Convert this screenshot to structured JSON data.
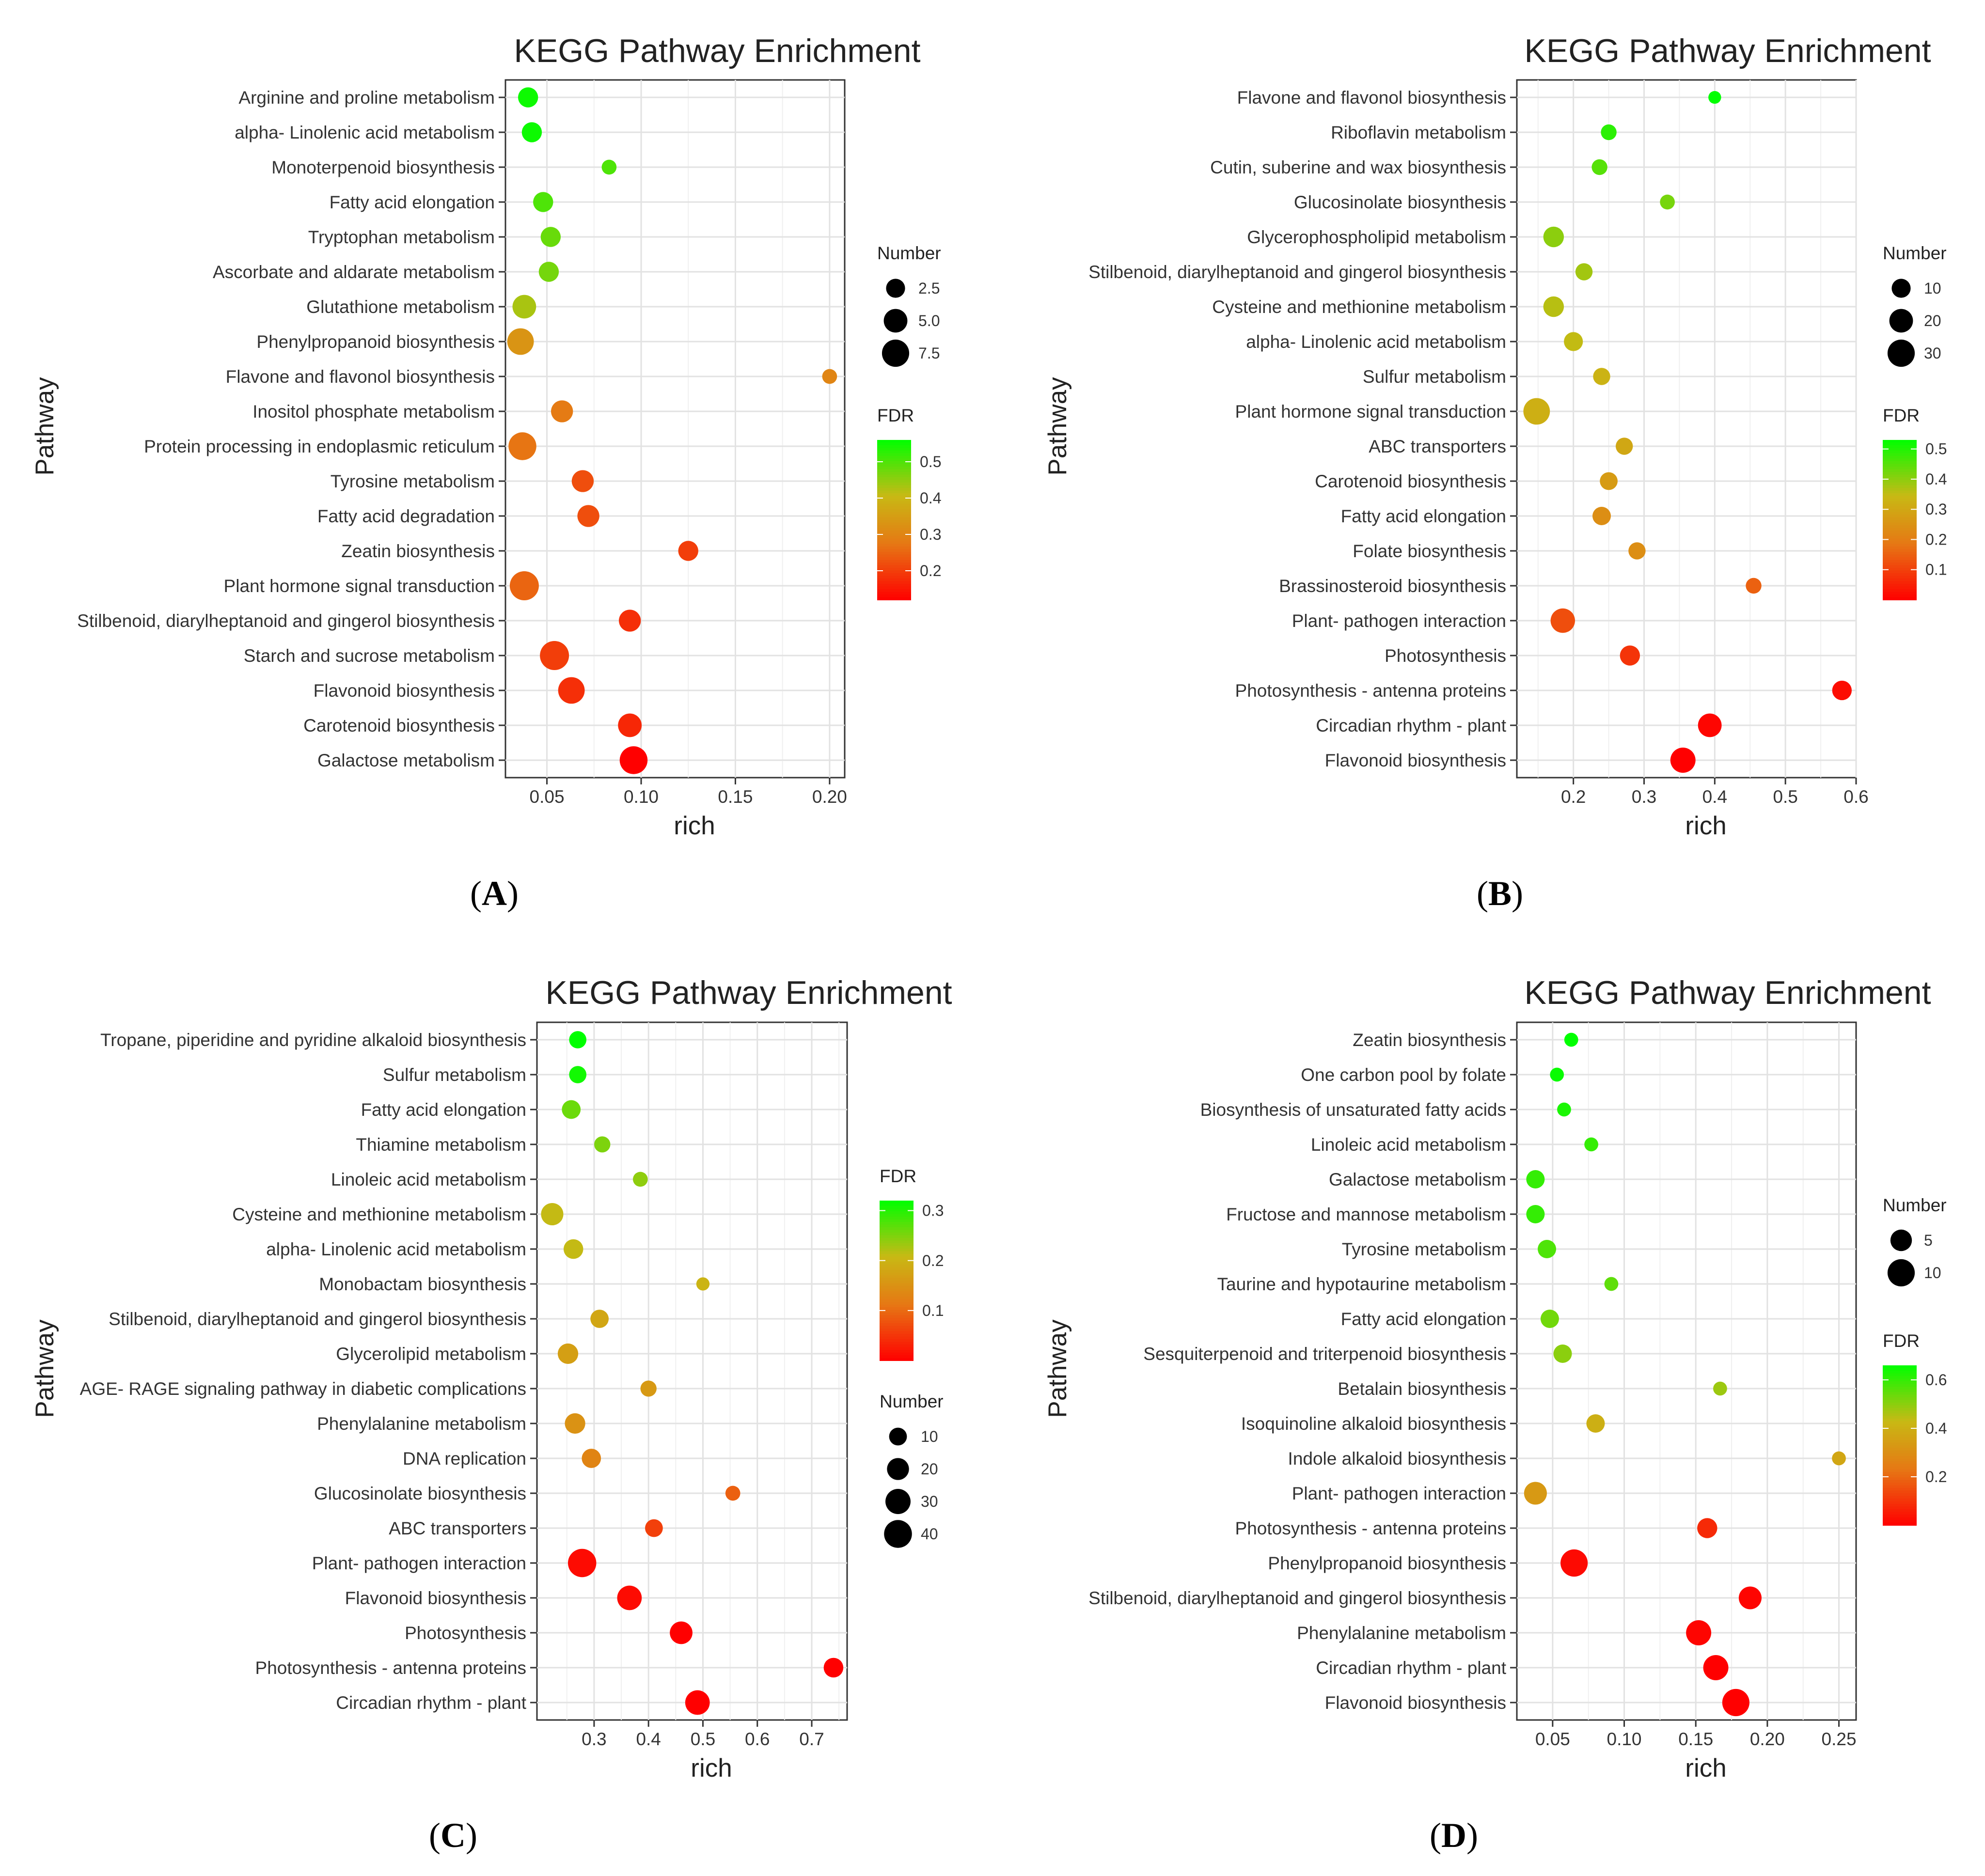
{
  "figure_title": "KEGG pathway enrichment panels",
  "chart_data": [
    {
      "type": "scatter",
      "panel": "A",
      "title": "KEGG Pathway Enrichment",
      "xlabel": "rich",
      "ylabel": "Pathway",
      "xlim": [
        0.028,
        0.208
      ],
      "xticks": [
        0.05,
        0.1,
        0.15,
        0.2
      ],
      "xtick_labels": [
        "0.05",
        "0.10",
        "0.15",
        "0.20"
      ],
      "size_legend": {
        "title": "Number",
        "labels": [
          "2.5",
          "5.0",
          "7.5"
        ],
        "values": [
          2.5,
          5.0,
          7.5
        ],
        "max": 9
      },
      "color_legend": {
        "title": "FDR",
        "labels": [
          "0.5",
          "0.4",
          "0.3",
          "0.2"
        ],
        "values": [
          0.5,
          0.4,
          0.3,
          0.2
        ],
        "min": 0.12,
        "max": 0.56
      },
      "points": [
        {
          "pathway": "Arginine and proline metabolism",
          "rich": 0.04,
          "number": 3,
          "fdr": 0.55
        },
        {
          "pathway": "alpha- Linolenic acid metabolism",
          "rich": 0.042,
          "number": 3,
          "fdr": 0.55
        },
        {
          "pathway": "Monoterpenoid biosynthesis",
          "rich": 0.083,
          "number": 1,
          "fdr": 0.5
        },
        {
          "pathway": "Fatty acid elongation",
          "rich": 0.048,
          "number": 3,
          "fdr": 0.5
        },
        {
          "pathway": "Tryptophan metabolism",
          "rich": 0.052,
          "number": 3,
          "fdr": 0.48
        },
        {
          "pathway": "Ascorbate and aldarate metabolism",
          "rich": 0.051,
          "number": 3,
          "fdr": 0.47
        },
        {
          "pathway": "Glutathione metabolism",
          "rich": 0.038,
          "number": 5,
          "fdr": 0.43
        },
        {
          "pathway": "Phenylpropanoid biosynthesis",
          "rich": 0.036,
          "number": 7,
          "fdr": 0.33
        },
        {
          "pathway": "Flavone and flavonol biosynthesis",
          "rich": 0.2,
          "number": 1,
          "fdr": 0.3
        },
        {
          "pathway": "Inositol phosphate metabolism",
          "rich": 0.058,
          "number": 4,
          "fdr": 0.28
        },
        {
          "pathway": "Protein processing in endoplasmic reticulum",
          "rich": 0.037,
          "number": 8,
          "fdr": 0.27
        },
        {
          "pathway": "Tyrosine metabolism",
          "rich": 0.069,
          "number": 4,
          "fdr": 0.22
        },
        {
          "pathway": "Fatty acid degradation",
          "rich": 0.072,
          "number": 4,
          "fdr": 0.22
        },
        {
          "pathway": "Zeatin biosynthesis",
          "rich": 0.125,
          "number": 3,
          "fdr": 0.2
        },
        {
          "pathway": "Plant hormone signal transduction",
          "rich": 0.038,
          "number": 9,
          "fdr": 0.25
        },
        {
          "pathway": "Stilbenoid, diarylheptanoid and gingerol biosynthesis",
          "rich": 0.094,
          "number": 4,
          "fdr": 0.18
        },
        {
          "pathway": "Starch and sucrose metabolism",
          "rich": 0.054,
          "number": 9,
          "fdr": 0.2
        },
        {
          "pathway": "Flavonoid biosynthesis",
          "rich": 0.063,
          "number": 7,
          "fdr": 0.18
        },
        {
          "pathway": "Carotenoid biosynthesis",
          "rich": 0.094,
          "number": 5,
          "fdr": 0.17
        },
        {
          "pathway": "Galactose metabolism",
          "rich": 0.096,
          "number": 8,
          "fdr": 0.12
        }
      ]
    },
    {
      "type": "scatter",
      "panel": "B",
      "title": "KEGG Pathway Enrichment",
      "xlabel": "rich",
      "ylabel": "Pathway",
      "xlim": [
        0.12,
        0.6
      ],
      "xticks": [
        0.2,
        0.3,
        0.4,
        0.5,
        0.6
      ],
      "xtick_labels": [
        "0.2",
        "0.3",
        "0.4",
        "0.5",
        "0.6"
      ],
      "size_legend": {
        "title": "Number",
        "labels": [
          "10",
          "20",
          "30"
        ],
        "values": [
          10,
          20,
          30
        ],
        "max": 36
      },
      "color_legend": {
        "title": "FDR",
        "labels": [
          "0.5",
          "0.4",
          "0.3",
          "0.2",
          "0.1"
        ],
        "values": [
          0.5,
          0.4,
          0.3,
          0.2,
          0.1
        ],
        "min": 0.0,
        "max": 0.53
      },
      "points": [
        {
          "pathway": "Flavone and flavonol biosynthesis",
          "rich": 0.4,
          "number": 2,
          "fdr": 0.53
        },
        {
          "pathway": "Riboflavin metabolism",
          "rich": 0.25,
          "number": 5,
          "fdr": 0.49
        },
        {
          "pathway": "Cutin, suberine and wax biosynthesis",
          "rich": 0.237,
          "number": 5,
          "fdr": 0.45
        },
        {
          "pathway": "Glucosinolate biosynthesis",
          "rich": 0.333,
          "number": 4,
          "fdr": 0.42
        },
        {
          "pathway": "Glycerophospholipid metabolism",
          "rich": 0.172,
          "number": 13,
          "fdr": 0.4
        },
        {
          "pathway": "Stilbenoid, diarylheptanoid and gingerol biosynthesis",
          "rich": 0.215,
          "number": 7,
          "fdr": 0.38
        },
        {
          "pathway": "Cysteine and methionine metabolism",
          "rich": 0.172,
          "number": 13,
          "fdr": 0.36
        },
        {
          "pathway": "alpha- Linolenic acid metabolism",
          "rich": 0.2,
          "number": 10,
          "fdr": 0.35
        },
        {
          "pathway": "Sulfur metabolism",
          "rich": 0.24,
          "number": 7,
          "fdr": 0.33
        },
        {
          "pathway": "Plant hormone signal transduction",
          "rich": 0.148,
          "number": 28,
          "fdr": 0.32
        },
        {
          "pathway": "ABC transporters",
          "rich": 0.272,
          "number": 7,
          "fdr": 0.3
        },
        {
          "pathway": "Carotenoid biosynthesis",
          "rich": 0.25,
          "number": 8,
          "fdr": 0.27
        },
        {
          "pathway": "Fatty acid elongation",
          "rich": 0.24,
          "number": 9,
          "fdr": 0.24
        },
        {
          "pathway": "Folate biosynthesis",
          "rich": 0.29,
          "number": 7,
          "fdr": 0.24
        },
        {
          "pathway": "Brassinosteroid biosynthesis",
          "rich": 0.455,
          "number": 5,
          "fdr": 0.15
        },
        {
          "pathway": "Plant- pathogen interaction",
          "rich": 0.185,
          "number": 22,
          "fdr": 0.12
        },
        {
          "pathway": "Photosynthesis",
          "rich": 0.28,
          "number": 12,
          "fdr": 0.08
        },
        {
          "pathway": "Photosynthesis -  antenna proteins",
          "rich": 0.58,
          "number": 11,
          "fdr": 0.02
        },
        {
          "pathway": "Circadian rhythm -  plant",
          "rich": 0.393,
          "number": 20,
          "fdr": 0.01
        },
        {
          "pathway": "Flavonoid biosynthesis",
          "rich": 0.355,
          "number": 24,
          "fdr": 0.0
        }
      ]
    },
    {
      "type": "scatter",
      "panel": "C",
      "title": "KEGG Pathway Enrichment",
      "xlabel": "rich",
      "ylabel": "Pathway",
      "xlim": [
        0.195,
        0.765
      ],
      "xticks": [
        0.3,
        0.4,
        0.5,
        0.6,
        0.7
      ],
      "xtick_labels": [
        "0.3",
        "0.4",
        "0.5",
        "0.6",
        "0.7"
      ],
      "size_legend": {
        "title": "Number",
        "labels": [
          "10",
          "20",
          "30",
          "40"
        ],
        "values": [
          10,
          20,
          30,
          40
        ],
        "max": 45
      },
      "color_legend": {
        "title": "FDR",
        "labels": [
          "0.3",
          "0.2",
          "0.1"
        ],
        "values": [
          0.3,
          0.2,
          0.1
        ],
        "min": 0.0,
        "max": 0.32
      },
      "points": [
        {
          "pathway": "Tropane, piperidine and pyridine alkaloid biosynthesis",
          "rich": 0.27,
          "number": 9,
          "fdr": 0.32
        },
        {
          "pathway": "Sulfur metabolism",
          "rich": 0.27,
          "number": 9,
          "fdr": 0.31
        },
        {
          "pathway": "Fatty acid elongation",
          "rich": 0.258,
          "number": 12,
          "fdr": 0.26
        },
        {
          "pathway": "Thiamine metabolism",
          "rich": 0.315,
          "number": 7,
          "fdr": 0.25
        },
        {
          "pathway": "Linoleic acid metabolism",
          "rich": 0.385,
          "number": 5,
          "fdr": 0.24
        },
        {
          "pathway": "Cysteine and methionine metabolism",
          "rich": 0.223,
          "number": 21,
          "fdr": 0.21
        },
        {
          "pathway": "alpha- Linolenic acid metabolism",
          "rich": 0.262,
          "number": 14,
          "fdr": 0.21
        },
        {
          "pathway": "Monobactam biosynthesis",
          "rich": 0.5,
          "number": 3,
          "fdr": 0.2
        },
        {
          "pathway": "Stilbenoid, diarylheptanoid and gingerol biosynthesis",
          "rich": 0.31,
          "number": 11,
          "fdr": 0.18
        },
        {
          "pathway": "Glycerolipid metabolism",
          "rich": 0.252,
          "number": 16,
          "fdr": 0.17
        },
        {
          "pathway": "AGE- RAGE signaling pathway in diabetic complications",
          "rich": 0.4,
          "number": 7,
          "fdr": 0.16
        },
        {
          "pathway": "Phenylalanine metabolism",
          "rich": 0.265,
          "number": 16,
          "fdr": 0.15
        },
        {
          "pathway": "DNA replication",
          "rich": 0.295,
          "number": 13,
          "fdr": 0.13
        },
        {
          "pathway": "Glucosinolate biosynthesis",
          "rich": 0.555,
          "number": 5,
          "fdr": 0.09
        },
        {
          "pathway": "ABC transporters",
          "rich": 0.41,
          "number": 10,
          "fdr": 0.06
        },
        {
          "pathway": "Plant- pathogen interaction",
          "rich": 0.278,
          "number": 42,
          "fdr": 0.01
        },
        {
          "pathway": "Flavonoid biosynthesis",
          "rich": 0.365,
          "number": 28,
          "fdr": 0.01
        },
        {
          "pathway": "Photosynthesis",
          "rich": 0.46,
          "number": 22,
          "fdr": 0.0
        },
        {
          "pathway": "Photosynthesis -  antenna proteins",
          "rich": 0.74,
          "number": 14,
          "fdr": 0.0
        },
        {
          "pathway": "Circadian rhythm -  plant",
          "rich": 0.49,
          "number": 28,
          "fdr": 0.0
        }
      ]
    },
    {
      "type": "scatter",
      "panel": "D",
      "title": "KEGG Pathway Enrichment",
      "xlabel": "rich",
      "ylabel": "Pathway",
      "xlim": [
        0.025,
        0.262
      ],
      "xticks": [
        0.05,
        0.1,
        0.15,
        0.2,
        0.25
      ],
      "xtick_labels": [
        "0.05",
        "0.10",
        "0.15",
        "0.20",
        "0.25"
      ],
      "size_legend": {
        "title": "Number",
        "labels": [
          "5",
          "10"
        ],
        "values": [
          5,
          10
        ],
        "max": 12
      },
      "color_legend": {
        "title": "FDR",
        "labels": [
          "0.6",
          "0.4",
          "0.2"
        ],
        "values": [
          0.6,
          0.4,
          0.2
        ],
        "min": 0.0,
        "max": 0.66
      },
      "points": [
        {
          "pathway": "Zeatin biosynthesis",
          "rich": 0.063,
          "number": 1,
          "fdr": 0.66
        },
        {
          "pathway": "One carbon pool by folate",
          "rich": 0.053,
          "number": 1,
          "fdr": 0.65
        },
        {
          "pathway": "Biosynthesis of unsaturated fatty acids",
          "rich": 0.058,
          "number": 1,
          "fdr": 0.63
        },
        {
          "pathway": "Linoleic acid metabolism",
          "rich": 0.077,
          "number": 1,
          "fdr": 0.6
        },
        {
          "pathway": "Galactose metabolism",
          "rich": 0.038,
          "number": 3,
          "fdr": 0.6
        },
        {
          "pathway": "Fructose and mannose metabolism",
          "rich": 0.038,
          "number": 3,
          "fdr": 0.6
        },
        {
          "pathway": "Tyrosine metabolism",
          "rich": 0.046,
          "number": 3,
          "fdr": 0.57
        },
        {
          "pathway": "Taurine and hypotaurine metabolism",
          "rich": 0.091,
          "number": 1,
          "fdr": 0.55
        },
        {
          "pathway": "Fatty acid elongation",
          "rich": 0.048,
          "number": 3,
          "fdr": 0.53
        },
        {
          "pathway": "Sesquiterpenoid and triterpenoid biosynthesis",
          "rich": 0.057,
          "number": 3,
          "fdr": 0.5
        },
        {
          "pathway": "Betalain biosynthesis",
          "rich": 0.167,
          "number": 1,
          "fdr": 0.48
        },
        {
          "pathway": "Isoquinoline alkaloid biosynthesis",
          "rich": 0.08,
          "number": 3,
          "fdr": 0.4
        },
        {
          "pathway": "Indole alkaloid biosynthesis",
          "rich": 0.25,
          "number": 1,
          "fdr": 0.37
        },
        {
          "pathway": "Plant- pathogen interaction",
          "rich": 0.038,
          "number": 6,
          "fdr": 0.33
        },
        {
          "pathway": "Photosynthesis -  antenna proteins",
          "rich": 0.158,
          "number": 4,
          "fdr": 0.08
        },
        {
          "pathway": "Phenylpropanoid biosynthesis",
          "rich": 0.065,
          "number": 10,
          "fdr": 0.02
        },
        {
          "pathway": "Stilbenoid, diarylheptanoid and gingerol biosynthesis",
          "rich": 0.188,
          "number": 6,
          "fdr": 0.01
        },
        {
          "pathway": "Phenylalanine metabolism",
          "rich": 0.152,
          "number": 8,
          "fdr": 0.01
        },
        {
          "pathway": "Circadian rhythm -  plant",
          "rich": 0.164,
          "number": 8,
          "fdr": 0.0
        },
        {
          "pathway": "Flavonoid biosynthesis",
          "rich": 0.178,
          "number": 10,
          "fdr": 0.0
        }
      ]
    }
  ]
}
